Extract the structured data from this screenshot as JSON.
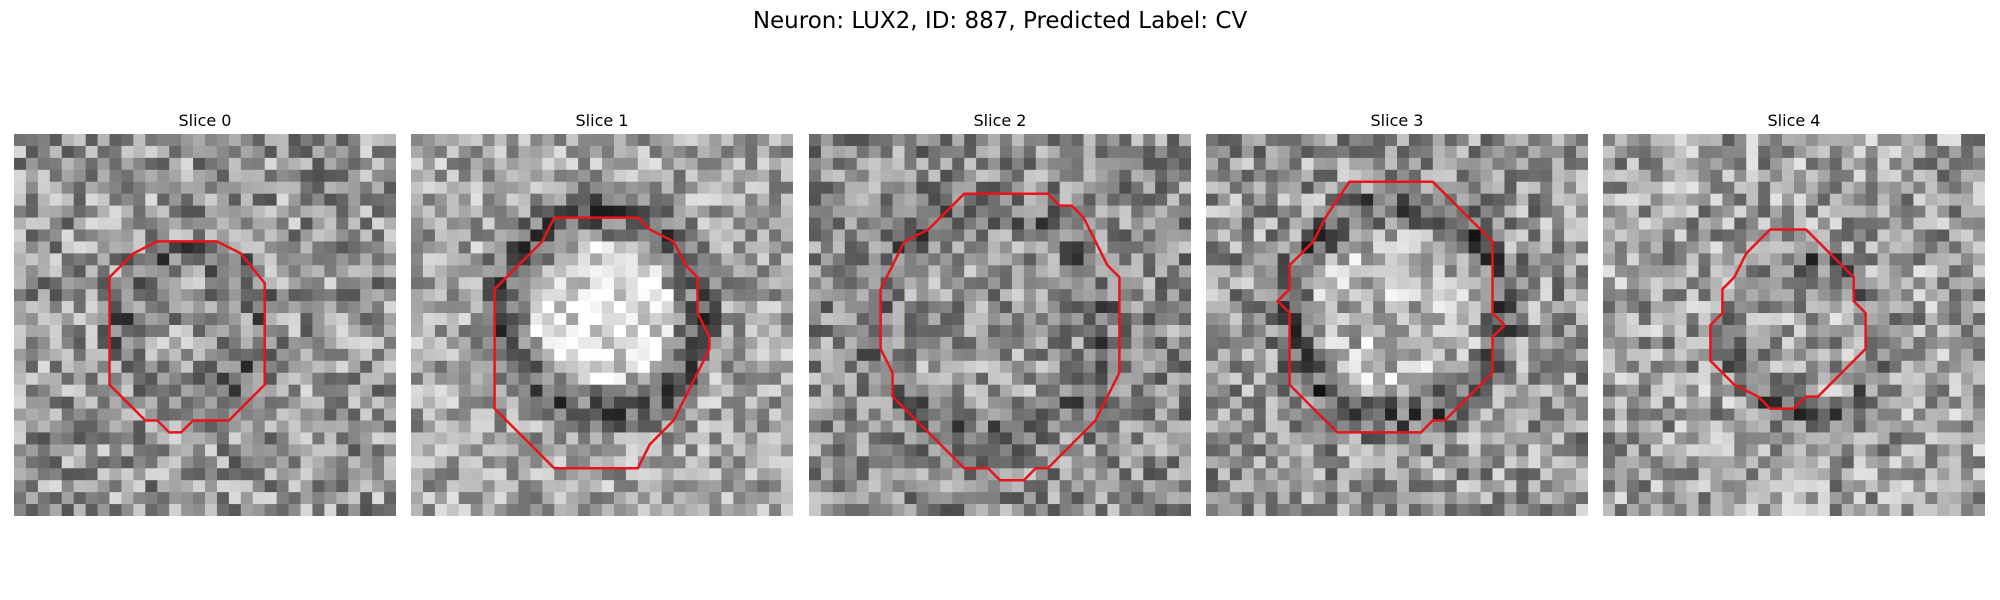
{
  "figure": {
    "title": "Neuron: LUX2, ID: 887, Predicted Label: CV"
  },
  "panels": [
    {
      "title": "Slice 0"
    },
    {
      "title": "Slice 1"
    },
    {
      "title": "Slice 2"
    },
    {
      "title": "Slice 3"
    },
    {
      "title": "Slice 4"
    }
  ],
  "colors": {
    "outline": "#e8141b",
    "background": "#ffffff"
  }
}
